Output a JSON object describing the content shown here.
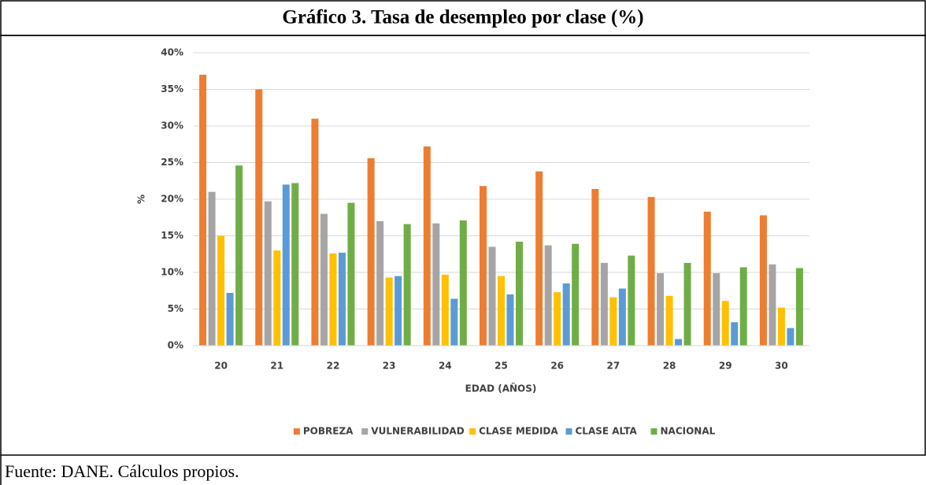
{
  "chart_data": {
    "type": "bar",
    "title": "Gráfico 3. Tasa de desempleo por clase (%)",
    "y_label": "%",
    "x_label": "EDAD (AÑOS)",
    "source": "Fuente: DANE. Cálculos propios.",
    "categories": [
      "20",
      "21",
      "22",
      "23",
      "24",
      "25",
      "26",
      "27",
      "28",
      "29",
      "30"
    ],
    "series": [
      {
        "name": "POBREZA",
        "color": "#ed7d31",
        "values": [
          37,
          35,
          31,
          25.6,
          27.2,
          21.8,
          23.8,
          21.4,
          20.3,
          18.3,
          17.8
        ]
      },
      {
        "name": "VULNERABILIDAD",
        "color": "#a5a5a5",
        "values": [
          21,
          19.7,
          18,
          17,
          16.7,
          13.5,
          13.7,
          11.3,
          9.9,
          9.9,
          11.1
        ]
      },
      {
        "name": "CLASE MEDIDA",
        "color": "#ffc000",
        "values": [
          15,
          13,
          12.6,
          9.3,
          9.7,
          9.5,
          7.3,
          6.6,
          6.8,
          6.1,
          5.2
        ]
      },
      {
        "name": "CLASE ALTA",
        "color": "#5b9bd5",
        "values": [
          7.2,
          22,
          12.7,
          9.5,
          6.4,
          7,
          8.5,
          7.8,
          0.9,
          3.2,
          2.4
        ]
      },
      {
        "name": "NACIONAL",
        "color": "#70ad47",
        "values": [
          24.6,
          22.2,
          19.5,
          16.6,
          17.1,
          14.2,
          13.9,
          12.3,
          11.3,
          10.7,
          10.6
        ]
      }
    ],
    "ylim": [
      0,
      40
    ],
    "yticks": [
      {
        "value": 0,
        "label": "0%"
      },
      {
        "value": 5,
        "label": "5%"
      },
      {
        "value": 10,
        "label": "10%"
      },
      {
        "value": 15,
        "label": "15%"
      },
      {
        "value": 20,
        "label": "20%"
      },
      {
        "value": 25,
        "label": "25%"
      },
      {
        "value": 30,
        "label": "30%"
      },
      {
        "value": 35,
        "label": "35%"
      },
      {
        "value": 40,
        "label": "40%"
      }
    ],
    "grid": true,
    "legend": "bottom"
  }
}
